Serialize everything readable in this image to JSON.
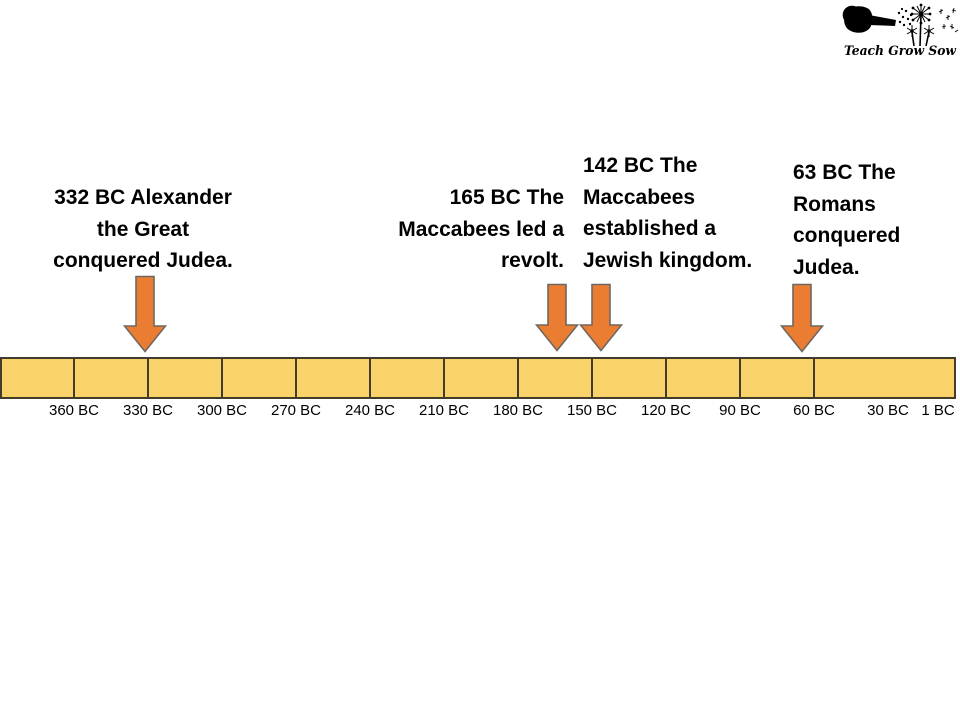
{
  "logo": {
    "text": "Teach Grow Sow",
    "color": "#000000"
  },
  "annotations": [
    {
      "id": "alexander-conquest",
      "year": "332 BC",
      "lines": [
        "332 BC Alexander",
        "the Great",
        "conquered Judea."
      ]
    },
    {
      "id": "maccabee-revolt",
      "year": "165 BC",
      "lines": [
        "165 BC The",
        "Maccabees led a",
        "revolt."
      ]
    },
    {
      "id": "jewish-kingdom",
      "year": "142 BC",
      "lines": [
        "142 BC The",
        "Maccabees",
        "established a",
        "Jewish kingdom."
      ]
    },
    {
      "id": "roman-conquest",
      "year": "63 BC",
      "lines": [
        "63 BC The",
        "Romans",
        "conquered",
        "Judea."
      ]
    }
  ],
  "timeline": {
    "tick_labels": [
      "360 BC",
      "330 BC",
      "300 BC",
      "270 BC",
      "240 BC",
      "210 BC",
      "180 BC",
      "150 BC",
      "120 BC",
      "90 BC",
      "60 BC",
      "30 BC",
      "1 BC"
    ],
    "segment_count": 13
  },
  "colors": {
    "bar_fill": "#f9d369",
    "bar_border": "#433c2a",
    "arrow_fill": "#eb7d33",
    "arrow_stroke": "#6f675f",
    "text": "#000000"
  }
}
